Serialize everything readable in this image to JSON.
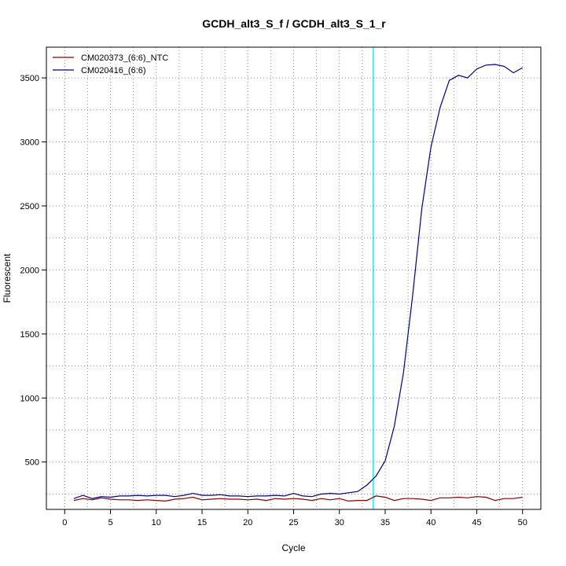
{
  "chart_data": {
    "type": "line",
    "title": "GCDH_alt3_S_f / GCDH_alt3_S_1_r",
    "xlabel": "Cycle",
    "ylabel": "Fluorescent",
    "xlim": [
      -2,
      52
    ],
    "ylim": [
      130,
      3740
    ],
    "xticks": [
      0,
      5,
      10,
      15,
      20,
      25,
      30,
      35,
      40,
      45,
      50
    ],
    "yticks": [
      500,
      1000,
      1500,
      2000,
      2500,
      3000,
      3500
    ],
    "grid": true,
    "legend_position": "top-left",
    "threshold_line": {
      "x": 33.7,
      "color": "#00e5ee"
    },
    "series": [
      {
        "name": "CM020373_(6:6)_NTC",
        "color": "#8b0000",
        "x": [
          1,
          2,
          3,
          4,
          5,
          6,
          7,
          8,
          9,
          10,
          11,
          12,
          13,
          14,
          15,
          16,
          17,
          18,
          19,
          20,
          21,
          22,
          23,
          24,
          25,
          26,
          27,
          28,
          29,
          30,
          31,
          32,
          33,
          34,
          35,
          36,
          37,
          38,
          39,
          40,
          41,
          42,
          43,
          44,
          45,
          46,
          47,
          48,
          49,
          50
        ],
        "y": [
          200,
          215,
          205,
          220,
          210,
          205,
          205,
          200,
          205,
          200,
          195,
          210,
          215,
          225,
          205,
          210,
          215,
          210,
          210,
          205,
          210,
          200,
          215,
          210,
          215,
          210,
          200,
          215,
          205,
          215,
          195,
          200,
          200,
          235,
          225,
          200,
          215,
          215,
          210,
          200,
          220,
          220,
          225,
          220,
          230,
          225,
          200,
          215,
          215,
          225
        ]
      },
      {
        "name": "CM020416_(6:6)",
        "color": "#00008b",
        "x": [
          1,
          2,
          3,
          4,
          5,
          6,
          7,
          8,
          9,
          10,
          11,
          12,
          13,
          14,
          15,
          16,
          17,
          18,
          19,
          20,
          21,
          22,
          23,
          24,
          25,
          26,
          27,
          28,
          29,
          30,
          31,
          32,
          33,
          34,
          35,
          36,
          37,
          38,
          39,
          40,
          41,
          42,
          43,
          44,
          45,
          46,
          47,
          48,
          49,
          50
        ],
        "y": [
          215,
          240,
          215,
          230,
          225,
          235,
          235,
          240,
          235,
          240,
          240,
          230,
          240,
          255,
          240,
          240,
          245,
          235,
          235,
          230,
          235,
          235,
          240,
          235,
          255,
          235,
          230,
          250,
          255,
          250,
          260,
          270,
          320,
          390,
          510,
          780,
          1200,
          1800,
          2480,
          2960,
          3270,
          3480,
          3520,
          3500,
          3570,
          3600,
          3605,
          3590,
          3540,
          3580
        ]
      }
    ]
  }
}
